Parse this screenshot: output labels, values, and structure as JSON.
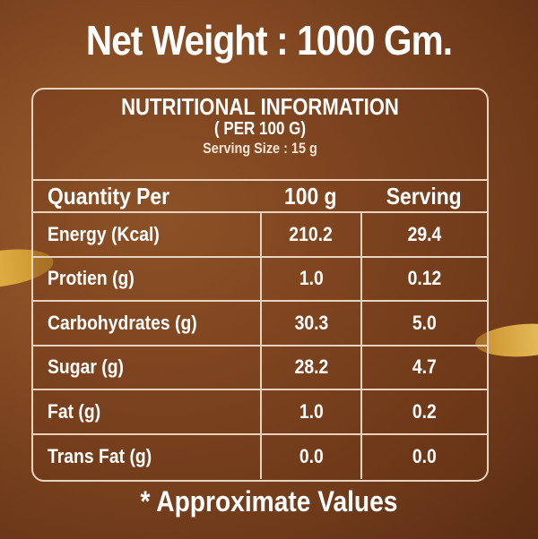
{
  "net_weight": "Net Weight : 1000 Gm.",
  "panel": {
    "title": "NUTRITIONAL INFORMATION",
    "subtitle": "( PER 100 G)",
    "serving_size": "Serving Size : 15 g",
    "columns": [
      "Quantity Per",
      "100 g",
      "Serving"
    ],
    "rows": [
      {
        "name": "Energy (Kcal)",
        "per100": "210.2",
        "serving": "29.4"
      },
      {
        "name": "Protien (g)",
        "per100": "1.0",
        "serving": "0.12"
      },
      {
        "name": "Carbohydrates (g)",
        "per100": "30.3",
        "serving": "5.0"
      },
      {
        "name": "Sugar (g)",
        "per100": "28.2",
        "serving": "4.7"
      },
      {
        "name": "Fat (g)",
        "per100": "1.0",
        "serving": "0.2"
      },
      {
        "name": "Trans Fat (g)",
        "per100": "0.0",
        "serving": "0.0"
      }
    ]
  },
  "footnote": "* Approximate Values",
  "colors": {
    "background": "#7e4520",
    "accent_gold": "#f0c75a",
    "text": "#ffffff"
  }
}
